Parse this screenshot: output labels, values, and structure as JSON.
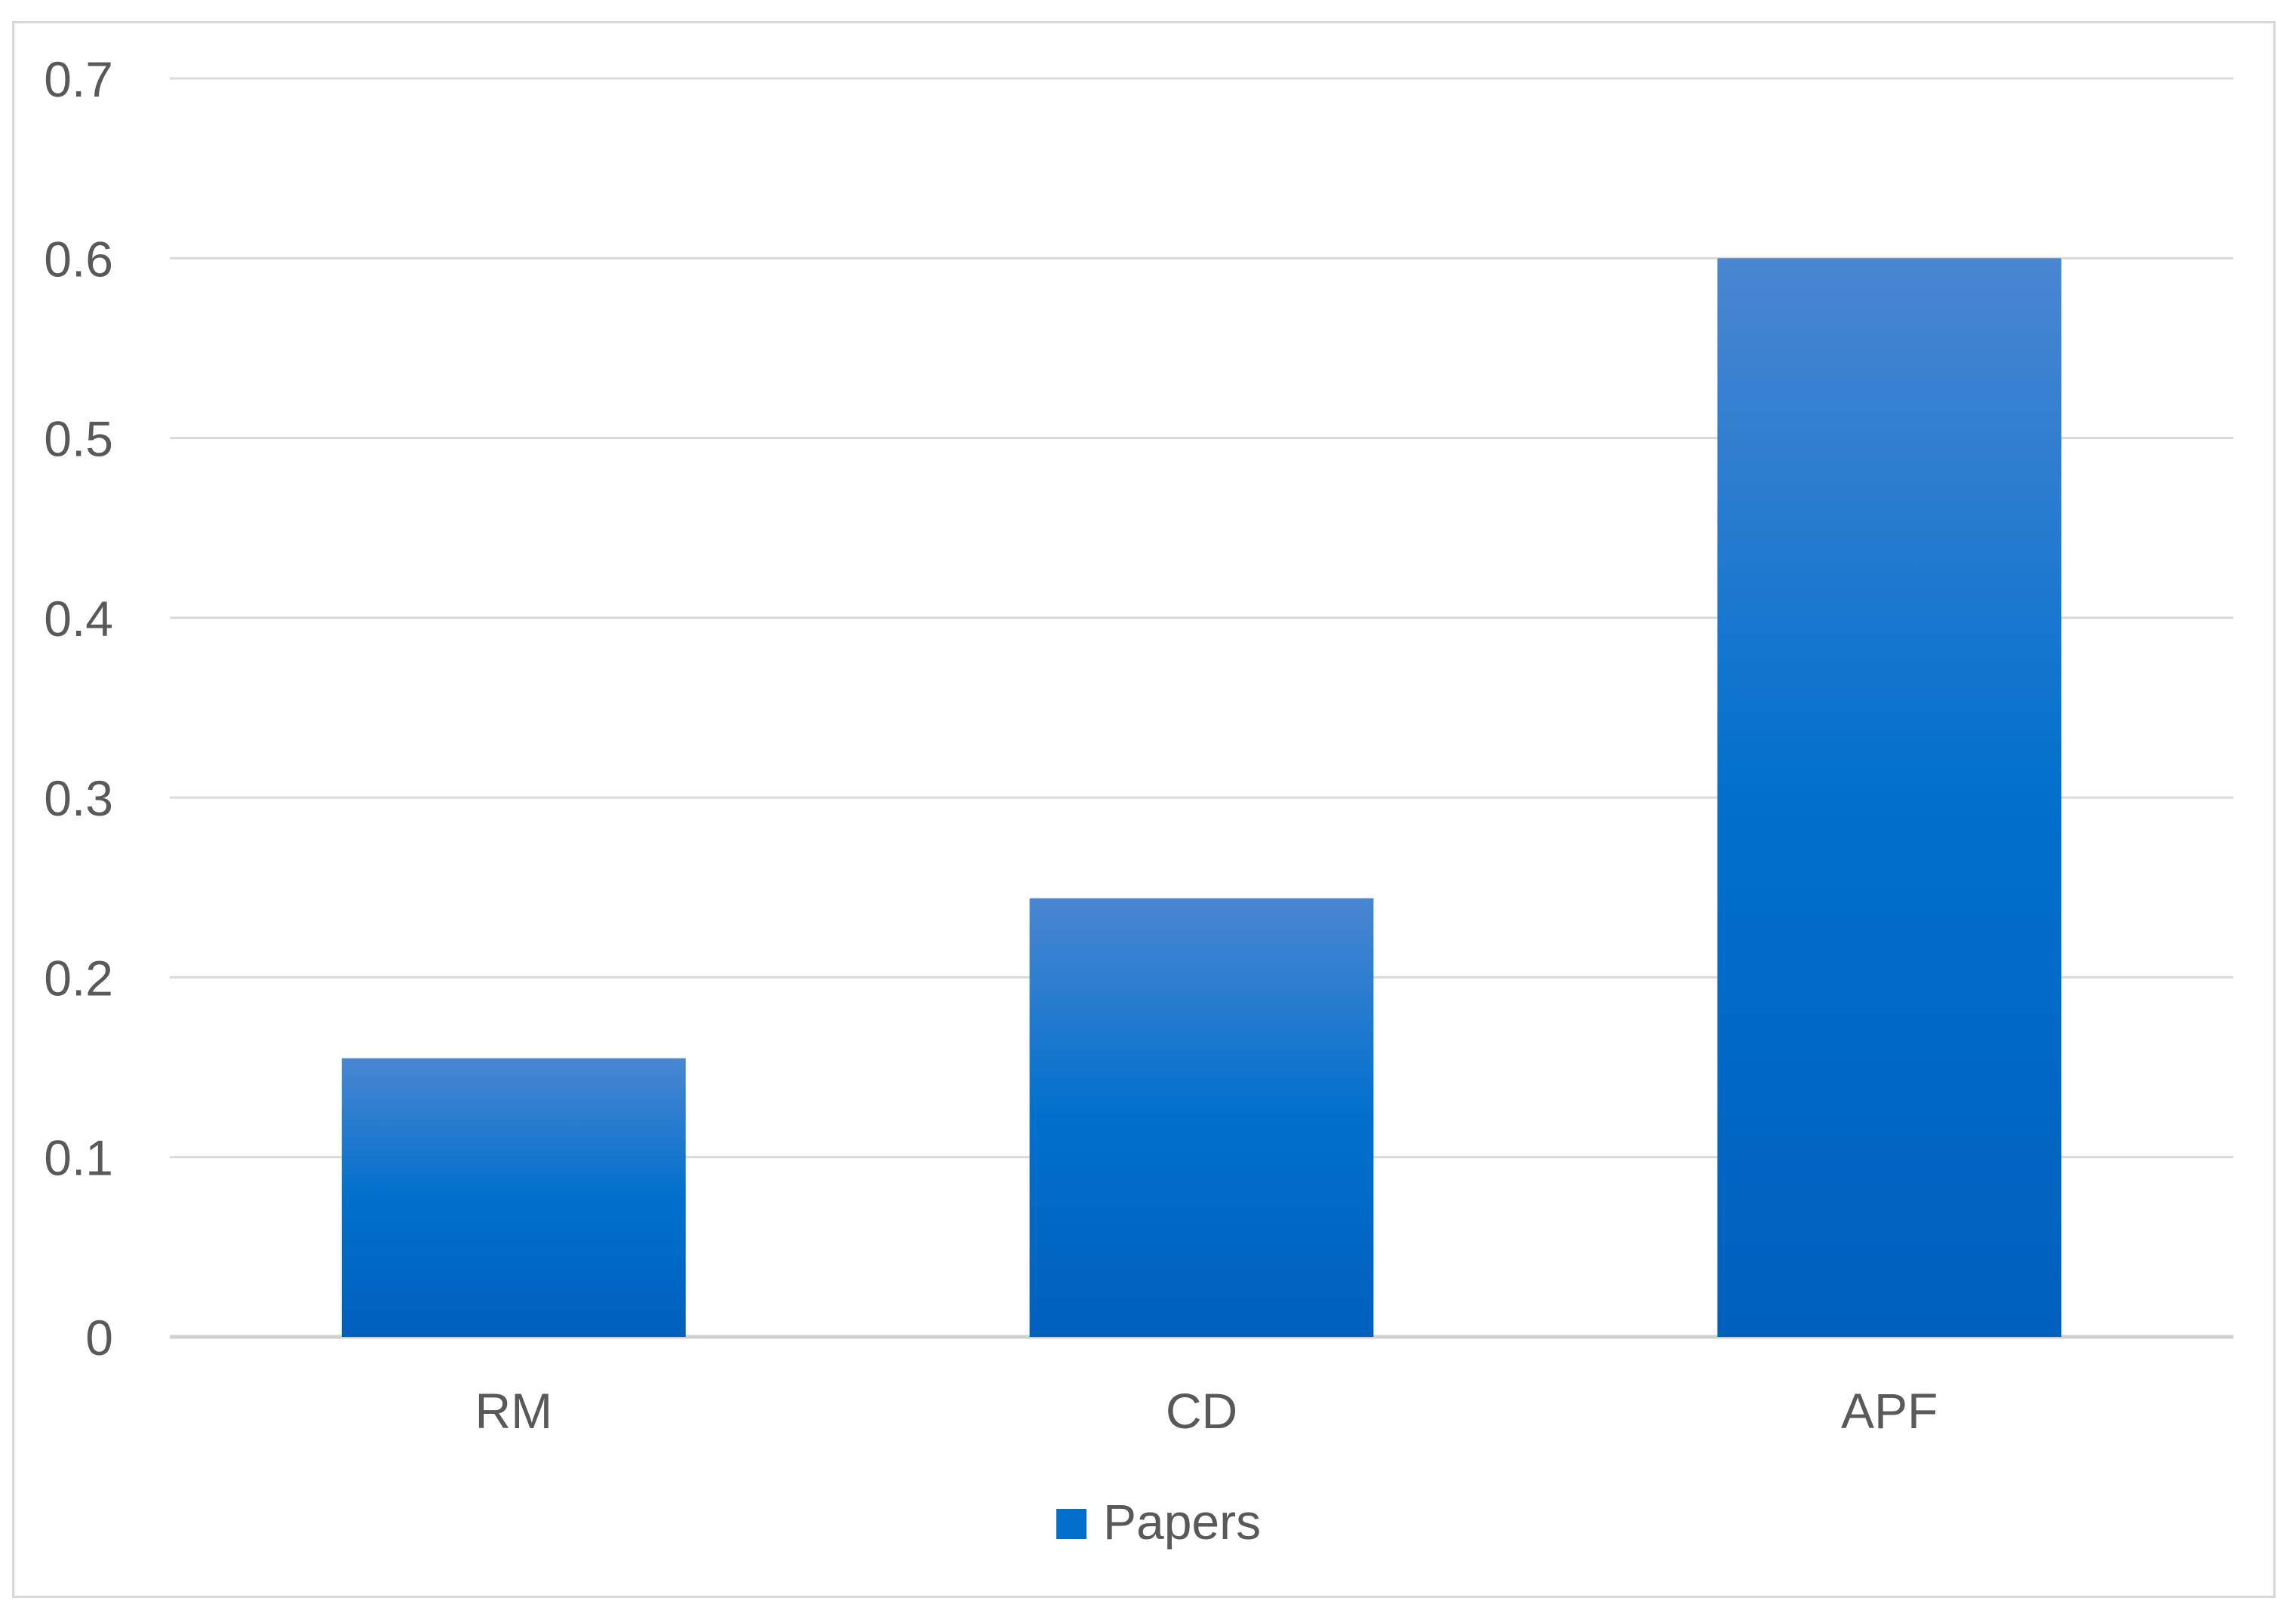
{
  "chart_data": {
    "type": "bar",
    "title": "",
    "xlabel": "",
    "ylabel": "",
    "categories": [
      "RM",
      "CD",
      "APF"
    ],
    "series": [
      {
        "name": "Papers",
        "values": [
          0.155,
          0.244,
          0.6
        ]
      }
    ],
    "ylim": [
      0,
      0.7
    ],
    "yticks": [
      "0",
      "0.1",
      "0.2",
      "0.3",
      "0.4",
      "0.5",
      "0.6",
      "0.7"
    ],
    "grid": true,
    "legend": "bottom",
    "colors": {
      "bar_top": "#4a86d1",
      "bar_mid": "#0070cc",
      "bar_bottom": "#0060bd",
      "grid": "#d9d9d9",
      "axis": "#d0d0d0",
      "text": "#595959"
    }
  }
}
